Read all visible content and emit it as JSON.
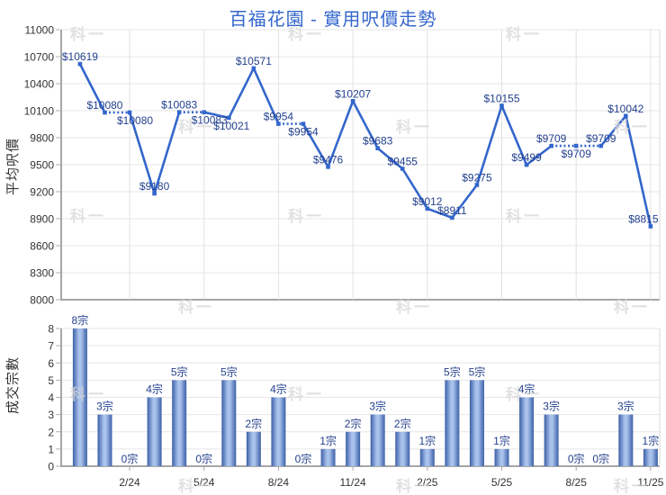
{
  "title": "百福花園 - 實用呎價走勢",
  "watermark_text": "科一",
  "colors": {
    "title": "#3366cc",
    "line": "#3366cc",
    "point_label": "#24418e",
    "bar_label": "#24418e",
    "axis_text": "#333333",
    "axis_line": "#a6a6a6",
    "tick": "#b0b0b0",
    "grid": "#e6e6e6",
    "grid_vertical": "#e2e2e2",
    "plot_border": "#d9d9d9",
    "bar_edge": "#3c60a8",
    "bar_center": "#a9c2ec"
  },
  "chart_data": [
    {
      "type": "line",
      "title": "百福花園 - 實用呎價走勢",
      "ylabel": "平均呎價",
      "ylim": [
        8000,
        11000
      ],
      "ytick_step": 300,
      "ytick_labels": [
        "8000",
        "8300",
        "8600",
        "8900",
        "9200",
        "9500",
        "9800",
        "10100",
        "10400",
        "10700",
        "11000"
      ],
      "n_points": 24,
      "xtick_labels": [
        "2/24",
        "5/24",
        "8/24",
        "11/24",
        "2/25",
        "5/25",
        "8/25",
        "11/25"
      ],
      "xtick_positions": [
        2,
        5,
        8,
        11,
        14,
        17,
        20,
        23
      ],
      "values": [
        10619,
        10080,
        10080,
        9180,
        10083,
        10083,
        10021,
        10571,
        9954,
        9954,
        9476,
        10207,
        9683,
        9455,
        9012,
        8911,
        9275,
        10155,
        9499,
        9709,
        9709,
        9709,
        10042,
        8815
      ],
      "point_labels": [
        "$10619",
        "$10080",
        "$10080",
        "$9180",
        "$10083",
        "$10083",
        "$10021",
        "$10571",
        "$9954",
        "$9954",
        "$9476",
        "$10207",
        "$9683",
        "$9455",
        "$9012",
        "$8911",
        "$9275",
        "$10155",
        "$9499",
        "$9709",
        "$9709",
        "$9709",
        "$10042",
        "$8815"
      ],
      "label_side": [
        "a",
        "a",
        "b",
        "a",
        "a",
        "b",
        "b",
        "a",
        "a",
        "b",
        "a",
        "a",
        "a",
        "a",
        "a",
        "a",
        "a",
        "a",
        "a",
        "a",
        "b",
        "a",
        "a",
        "a"
      ],
      "dotted_segment_when_no_sales": true,
      "grid": true,
      "legend": "none"
    },
    {
      "type": "bar",
      "ylabel": "成交宗數",
      "ylim": [
        0,
        8
      ],
      "ytick_step": 1,
      "ytick_labels": [
        "0",
        "1",
        "2",
        "3",
        "4",
        "5",
        "6",
        "7",
        "8"
      ],
      "n_points": 24,
      "xtick_labels": [
        "2/24",
        "5/24",
        "8/24",
        "11/24",
        "2/25",
        "5/25",
        "8/25",
        "11/25"
      ],
      "xtick_positions": [
        2,
        5,
        8,
        11,
        14,
        17,
        20,
        23
      ],
      "values": [
        8,
        3,
        0,
        4,
        5,
        0,
        5,
        2,
        4,
        0,
        1,
        2,
        3,
        2,
        1,
        5,
        5,
        1,
        4,
        3,
        0,
        0,
        3,
        1
      ],
      "bar_labels": [
        "8宗",
        "3宗",
        "0宗",
        "4宗",
        "5宗",
        "0宗",
        "5宗",
        "2宗",
        "4宗",
        "0宗",
        "1宗",
        "2宗",
        "3宗",
        "2宗",
        "1宗",
        "5宗",
        "5宗",
        "1宗",
        "4宗",
        "3宗",
        "0宗",
        "0宗",
        "3宗",
        "1宗"
      ],
      "grid": true,
      "legend": "none"
    }
  ]
}
